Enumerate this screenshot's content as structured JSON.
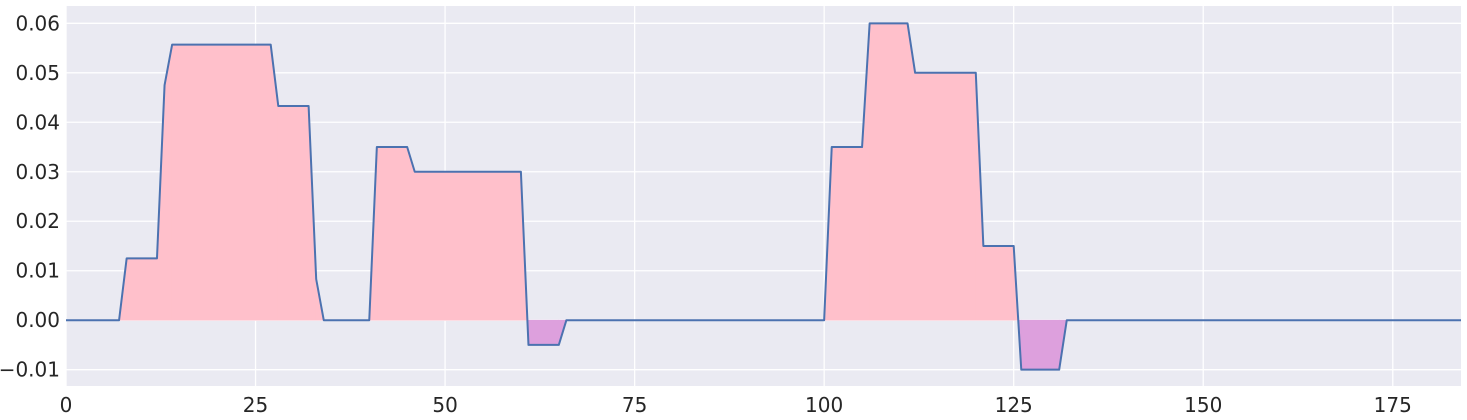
{
  "chart_data": {
    "type": "area",
    "title": "",
    "xlabel": "",
    "ylabel": "",
    "xlim": [
      0,
      184
    ],
    "ylim": [
      -0.0133,
      0.0635
    ],
    "grid": true,
    "background_color": "#EAEAF2",
    "line_color": "#4C72B0",
    "positive_fill_color": "#FFC0CB",
    "negative_fill_color": "#DDA0DD",
    "x_ticks": [
      0,
      25,
      50,
      75,
      100,
      125,
      150,
      175
    ],
    "x_tick_labels": [
      "0",
      "25",
      "50",
      "75",
      "100",
      "125",
      "150",
      "175"
    ],
    "y_ticks": [
      -0.01,
      0.0,
      0.01,
      0.02,
      0.03,
      0.04,
      0.05,
      0.06
    ],
    "y_tick_labels": [
      "−0.01",
      "0.00",
      "0.01",
      "0.02",
      "0.03",
      "0.04",
      "0.05",
      "0.06"
    ],
    "series": [
      {
        "x": [
          0,
          7,
          8,
          12,
          13,
          14,
          27,
          28,
          32,
          33,
          34,
          40,
          41,
          45,
          46,
          60,
          61,
          65,
          66,
          100,
          101,
          105,
          106,
          111,
          112,
          120,
          121,
          125,
          126,
          131,
          132,
          184
        ],
        "y": [
          0,
          0,
          0.0125,
          0.0125,
          0.0475,
          0.0557,
          0.0557,
          0.0433,
          0.0433,
          0.0083,
          0,
          0,
          0.035,
          0.035,
          0.03,
          0.03,
          -0.005,
          -0.005,
          0,
          0,
          0.035,
          0.035,
          0.06,
          0.06,
          0.05,
          0.05,
          0.015,
          0.015,
          -0.01,
          -0.01,
          0,
          0
        ]
      }
    ]
  }
}
